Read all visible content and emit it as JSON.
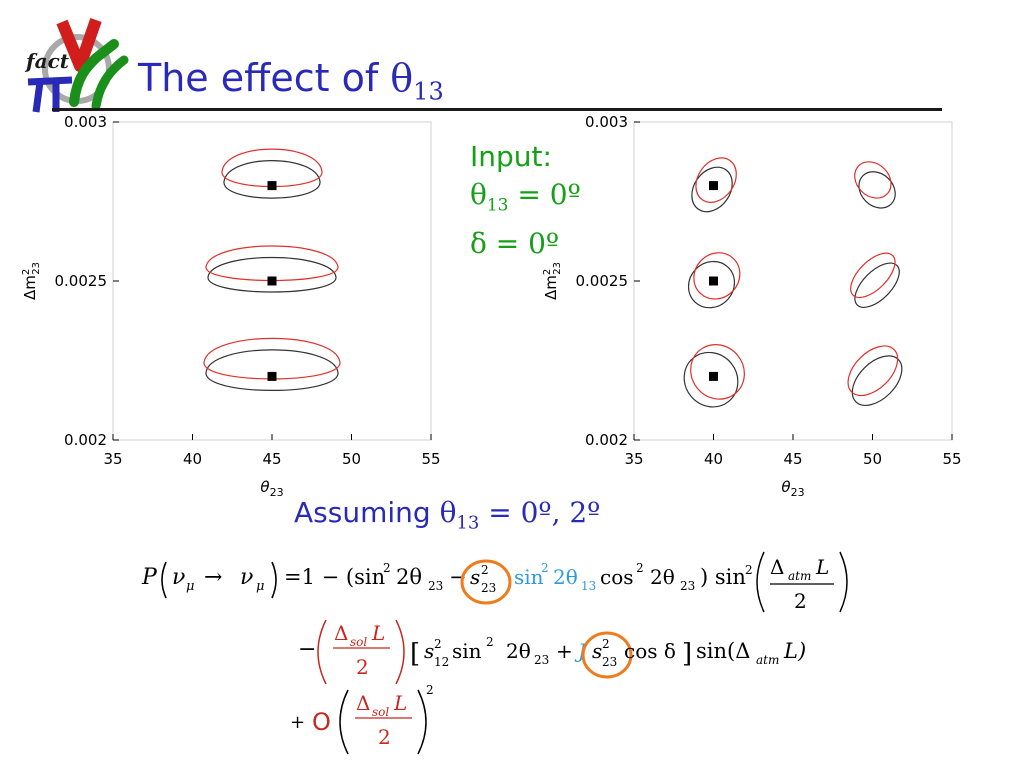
{
  "slide": {
    "title_prefix": "The effect of ",
    "title_symbol": "θ",
    "title_subscript": "13"
  },
  "logo": {
    "text": "fact",
    "colors": [
      "#d21d1d",
      "#2a2ab8",
      "#1a8f1a",
      "#9a9a9a"
    ]
  },
  "input_box": {
    "label": "Input:",
    "line1_symbol": "θ",
    "line1_subscript": "13",
    "line1_value": " = 0º",
    "line2": "δ = 0º",
    "color": "#15a015"
  },
  "assuming": {
    "prefix": "Assuming ",
    "symbol": "θ",
    "subscript": "13",
    "values": " =  0º, 2º",
    "color": "#2a2ab8"
  },
  "chart_data": [
    {
      "type": "scatter",
      "xlabel_sym": "θ",
      "xlabel_sub": "23",
      "ylabel": "Δm",
      "ylabel_sup": "2",
      "ylabel_sub": "23",
      "xlim": [
        35,
        55
      ],
      "ylim": [
        0.002,
        0.003
      ],
      "x_ticks": [
        "35",
        "40",
        "45",
        "50",
        "55"
      ],
      "y_ticks": [
        "0.002",
        "0.0025",
        "0.003"
      ],
      "points": [
        {
          "x": 45,
          "y": 0.0028
        },
        {
          "x": 45,
          "y": 0.0025
        },
        {
          "x": 45,
          "y": 0.0022
        }
      ],
      "series_colors": {
        "theta13_0": "#333333",
        "theta13_2": "#e0302a"
      }
    },
    {
      "type": "scatter",
      "xlabel_sym": "θ",
      "xlabel_sub": "23",
      "ylabel": "Δm",
      "ylabel_sup": "2",
      "ylabel_sub": "23",
      "xlim": [
        35,
        55
      ],
      "ylim": [
        0.002,
        0.003
      ],
      "x_ticks": [
        "35",
        "40",
        "45",
        "50",
        "55"
      ],
      "y_ticks": [
        "0.002",
        "0.0025",
        "0.003"
      ],
      "points": [
        {
          "x": 40,
          "y": 0.0028
        },
        {
          "x": 40,
          "y": 0.0025
        },
        {
          "x": 40,
          "y": 0.0022
        }
      ],
      "series_colors": {
        "theta13_0": "#333333",
        "theta13_2": "#e0302a"
      }
    }
  ],
  "equation": {
    "lhs_P": "P",
    "arrow": "→",
    "equals_one_minus": "=1 − (sin",
    "line1_t1": "2θ",
    "line1_t1_sub": "23",
    "line1_s23": "s",
    "line1_blue": "sin",
    "line1_blue2": "2θ",
    "line1_blue_sub": "13",
    "line1_cos": "cos",
    "line1_cos_arg": "2θ",
    "line1_cos_sub": "23",
    "line1_sin2": ") sin",
    "delta_atm": "Δ",
    "atm": "atm",
    "L": "L",
    "two": "2",
    "line2_minus": "−",
    "delta_sol": "Δ",
    "sol": "sol",
    "line2_s12": "s",
    "line2_s12_sub": "12",
    "line2_sin": "sin",
    "line2_2theta": "2θ",
    "line2_sub23": "23",
    "line2_plus": "+",
    "line2_J": "J",
    "line2_cosdelta": "cos δ",
    "line2_sin_tail": "sin(Δ",
    "line2_close": "L)",
    "line3_plus": "+",
    "line3_O": "O",
    "blue_color": "#2e9be0",
    "red_color": "#c8281e",
    "orange_color": "#ee7c1c"
  }
}
